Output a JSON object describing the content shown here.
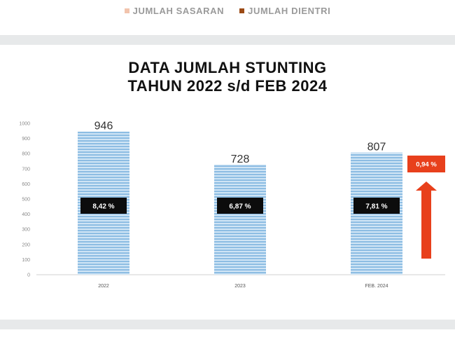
{
  "legend": [
    {
      "label": "JUMLAH SASARAN",
      "color": "#f2c4ad"
    },
    {
      "label": "JUMLAH DIENTRI",
      "color": "#9c4a15"
    }
  ],
  "chart_data": {
    "type": "bar",
    "title": [
      "DATA JUMLAH STUNTING",
      "TAHUN 2022 s/d FEB 2024"
    ],
    "categories": [
      "2022",
      "2023",
      "FEB. 2024"
    ],
    "values": [
      946,
      728,
      807
    ],
    "percent_labels": [
      "8,42 %",
      "6,87 %",
      "7,81 %"
    ],
    "ylim": [
      0,
      1000
    ],
    "yticks": [
      0,
      100,
      200,
      300,
      400,
      500,
      600,
      700,
      800,
      900,
      1000
    ],
    "bar_color": "#8dbde3",
    "grid": false,
    "annotation": {
      "label": "0,94 %",
      "color": "#e8401c",
      "direction": "up"
    }
  }
}
